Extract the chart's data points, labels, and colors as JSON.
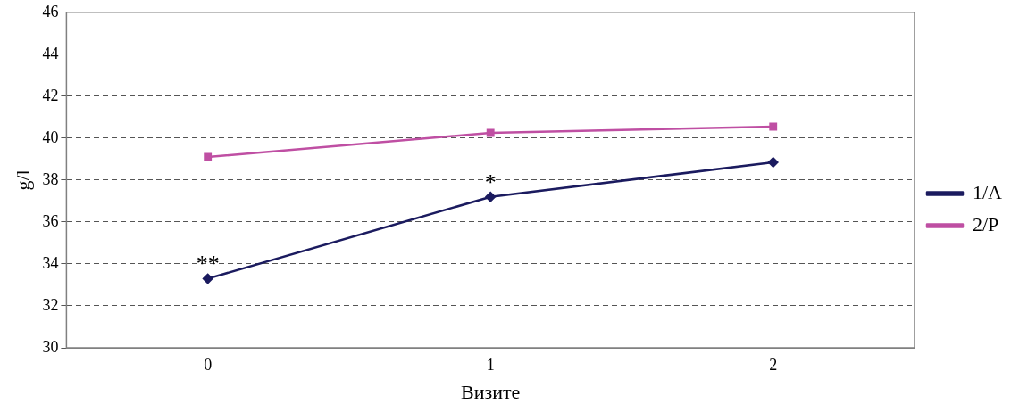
{
  "chart_data": {
    "type": "line",
    "xlabel": "Визите",
    "ylabel": "g/l",
    "categories": [
      "0",
      "1",
      "2"
    ],
    "series": [
      {
        "name": "1/A",
        "color": "#1b1b5f",
        "marker": "diamond",
        "values": [
          33.3,
          37.2,
          38.85
        ]
      },
      {
        "name": "2/P",
        "color": "#bf4fa3",
        "marker": "square",
        "values": [
          39.1,
          40.25,
          40.55
        ]
      }
    ],
    "ylim": [
      30,
      46
    ],
    "yticks": [
      30,
      32,
      34,
      36,
      38,
      40,
      42,
      44,
      46
    ],
    "grid": "y",
    "line_style": "solid",
    "legend": "right",
    "annotations": [
      {
        "text": "**",
        "x": "0",
        "y": 33.3
      },
      {
        "text": "*",
        "x": "1",
        "y": 37.2
      }
    ]
  }
}
